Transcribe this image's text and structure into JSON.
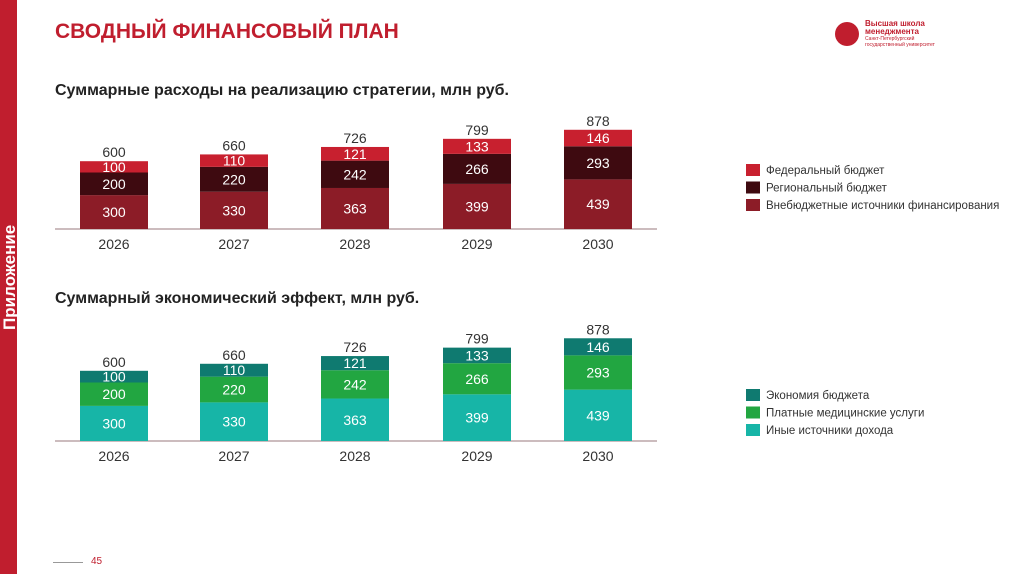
{
  "sidebar": {
    "label": "Приложение"
  },
  "header": {
    "title": "СВОДНЫЙ ФИНАНСОВЫЙ ПЛАН",
    "logo": {
      "line1": "Высшая школа",
      "line2": "менеджмента",
      "line3": "Санкт-Петербургский",
      "line4": "государственный университет"
    }
  },
  "footer": {
    "page": "45"
  },
  "chart_data": [
    {
      "type": "bar",
      "stacked": true,
      "title": "Суммарные расходы на реализацию стратегии, млн руб.",
      "categories": [
        "2026",
        "2027",
        "2028",
        "2029",
        "2030"
      ],
      "totals": [
        "600",
        "660",
        "726",
        "799",
        "878"
      ],
      "legend_position": "right",
      "grid": false,
      "series": [
        {
          "name": "Внебюджетные источники финансирования",
          "color": "#8c1c27",
          "values": [
            300,
            330,
            363,
            399,
            439
          ]
        },
        {
          "name": "Региональный бюджет",
          "color": "#3e0a10",
          "values": [
            200,
            220,
            242,
            266,
            293
          ]
        },
        {
          "name": "Федеральный бюджет",
          "color": "#c8202f",
          "values": [
            100,
            110,
            121,
            133,
            146
          ]
        }
      ]
    },
    {
      "type": "bar",
      "stacked": true,
      "title": "Суммарный экономический эффект, млн руб.",
      "categories": [
        "2026",
        "2027",
        "2028",
        "2029",
        "2030"
      ],
      "totals": [
        "600",
        "660",
        "726",
        "799",
        "878"
      ],
      "legend_position": "right",
      "grid": false,
      "series": [
        {
          "name": "Иные источники дохода",
          "color": "#17b5a7",
          "values": [
            300,
            330,
            363,
            399,
            439
          ]
        },
        {
          "name": "Платные медицинские услуги",
          "color": "#22a641",
          "values": [
            200,
            220,
            242,
            266,
            293
          ]
        },
        {
          "name": "Экономия бюджета",
          "color": "#0f7a70",
          "values": [
            100,
            110,
            121,
            133,
            146
          ]
        }
      ]
    }
  ]
}
